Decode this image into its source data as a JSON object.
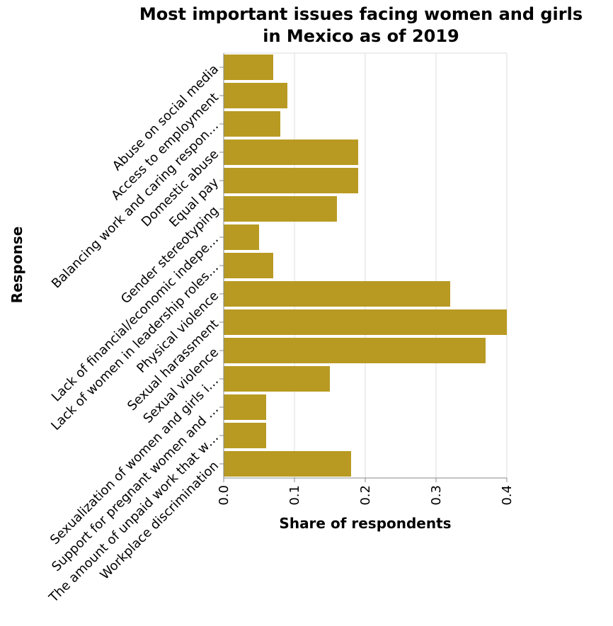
{
  "chart_data": {
    "type": "bar",
    "orientation": "horizontal",
    "title": "Most important issues facing women and girls in Mexico as of 2019",
    "title_lines": [
      "Most important issues facing women and girls",
      "in Mexico as of 2019"
    ],
    "xlabel": "Share of respondents",
    "ylabel": "Response",
    "xlim": [
      0,
      0.4
    ],
    "x_ticks": [
      "0.0",
      "0.1",
      "0.2",
      "0.3",
      "0.4"
    ],
    "grid": true,
    "bar_color": "#b89a22",
    "categories": [
      "Abuse on social media",
      "Access to employment",
      "Balancing work and caring respon…",
      "Domestic abuse",
      "Equal pay",
      "Gender stereotyping",
      "Lack of financial/economic indepe…",
      "Lack of women in leadership roles…",
      "Physical violence",
      "Sexual harassment",
      "Sexual violence",
      "Sexualization of women and girls i…",
      "Support for pregnant women and …",
      "The amount of unpaid work that w…",
      "Workplace discrimination"
    ],
    "values": [
      0.07,
      0.09,
      0.08,
      0.19,
      0.19,
      0.16,
      0.05,
      0.07,
      0.32,
      0.4,
      0.37,
      0.15,
      0.06,
      0.06,
      0.18
    ]
  }
}
